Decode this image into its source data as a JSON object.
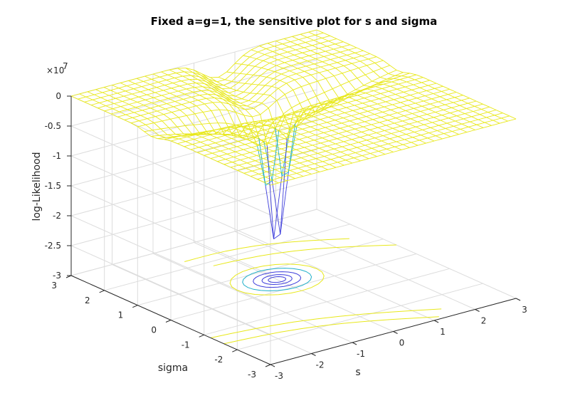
{
  "chart_data": {
    "type": "mesh3d",
    "title": "Fixed a=g=1, the sensitive plot for s and sigma",
    "xlabel": "s",
    "ylabel": "sigma",
    "zlabel": "log-Likelihood",
    "z_exponent_label": "×10",
    "z_exponent_power": "7",
    "xlim": [
      -3,
      3
    ],
    "ylim": [
      -3,
      3
    ],
    "zlim": [
      -3,
      0
    ],
    "x_ticks": [
      "-3",
      "-2",
      "-1",
      "0",
      "1",
      "2",
      "3"
    ],
    "y_ticks": [
      "-3",
      "-2",
      "-1",
      "0",
      "1",
      "2",
      "3"
    ],
    "z_ticks": [
      "0",
      "-0.5",
      "-1",
      "-1.5",
      "-2",
      "-2.5",
      "-3"
    ],
    "grid": true,
    "colors": {
      "surface": "#e8e81a",
      "deep_low": "#3d3ddb",
      "deep_mid": "#1fb0c9",
      "grid": "#dcdcdc",
      "axis": "#262626"
    },
    "surface_description": {
      "plateau_level_1e7": 0,
      "ridge_drop_1e7": -0.35,
      "trough_depth_1e7": -0.85,
      "spike_min_1e7": -3,
      "spike_location_s_sigma": [
        0,
        0.5
      ]
    }
  }
}
